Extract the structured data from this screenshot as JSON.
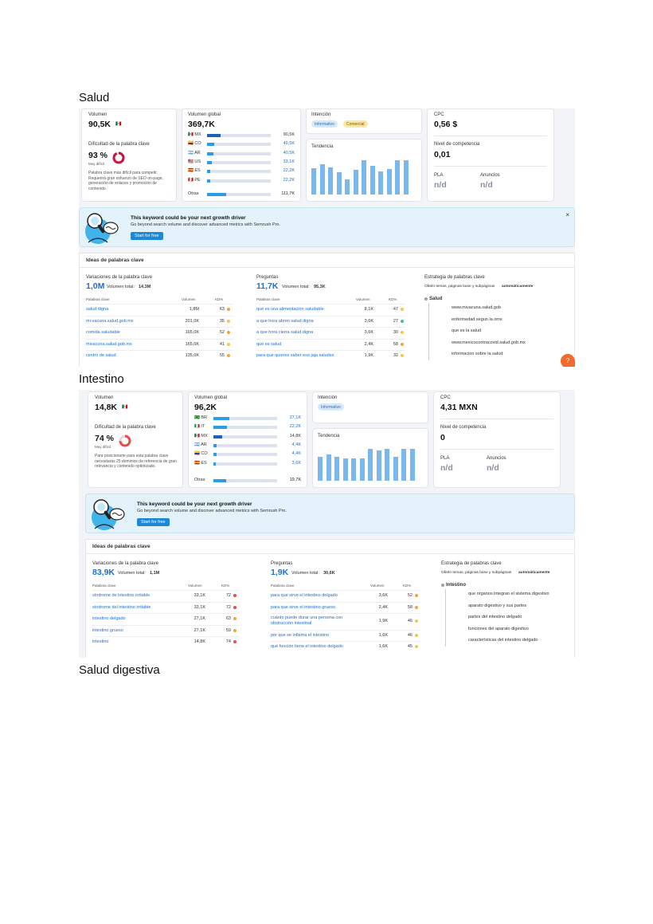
{
  "sections": [
    {
      "heading": "Salud",
      "volume": {
        "label": "Volumen",
        "value": "90,5K",
        "flag": "🇲🇽"
      },
      "difficulty": {
        "label": "Dificultad de la palabra clave",
        "percent": "93 %",
        "level": "Muy difícil",
        "fraction": 0.93,
        "color": "#c8143c",
        "desc": "Palabra clave más difícil para competir. Requerirá gran esfuerzo de SEO on-page, generación de enlaces y promoción de contenido."
      },
      "global": {
        "label": "Volumen global",
        "value": "369,7K",
        "countries": [
          {
            "flag": "🇲🇽",
            "code": "MX",
            "value": "90,5K",
            "fraction": 0.24,
            "dark": true
          },
          {
            "flag": "🇨🇴",
            "code": "CO",
            "value": "49,5K",
            "fraction": 0.13,
            "dark": false
          },
          {
            "flag": "🇦🇷",
            "code": "AR",
            "value": "40,5K",
            "fraction": 0.11,
            "dark": false
          },
          {
            "flag": "🇺🇸",
            "code": "US",
            "value": "33,1K",
            "fraction": 0.09,
            "dark": false
          },
          {
            "flag": "🇪🇸",
            "code": "ES",
            "value": "22,2K",
            "fraction": 0.06,
            "dark": false
          },
          {
            "flag": "🇵🇪",
            "code": "PE",
            "value": "22,2K",
            "fraction": 0.06,
            "dark": false
          }
        ],
        "others_label": "Otras",
        "others_value": "111,7K",
        "others_fraction": 0.3
      },
      "intent": {
        "label": "Intención",
        "tags": [
          "Informativo",
          "Comercial"
        ]
      },
      "trend": {
        "label": "Tendencia",
        "values": [
          0.62,
          0.72,
          0.65,
          0.52,
          0.35,
          0.58,
          0.82,
          0.68,
          0.55,
          0.6,
          0.82,
          0.82
        ]
      },
      "cpc": {
        "label": "CPC",
        "value": "0,56 $"
      },
      "competition": {
        "label": "Nivel de competencia",
        "value": "0,01"
      },
      "pla": {
        "label": "PLA",
        "value": "n/d"
      },
      "ads": {
        "label": "Anuncios",
        "value": "n/d"
      },
      "banner": {
        "title": "This keyword could be your next growth driver",
        "sub": "Go beyond search volume and discover advanced metrics with Semrush Pro.",
        "button": "Start for free",
        "close": "×"
      },
      "ideas": {
        "title": "Ideas de palabras clave",
        "variations": {
          "label": "Variaciones de la palabra clave",
          "count": "1,0M",
          "total_label": "Volumen total:",
          "total": "14,3M",
          "col_kw": "Palabras clave",
          "col_vol": "Volumen",
          "col_kd": "KD%",
          "rows": [
            {
              "kw": "salud digna",
              "vol": "1,8M",
              "kd": "63",
              "c": "#f0a630"
            },
            {
              "kw": "mi-vacuna.salud.gob.mx",
              "vol": "201,0K",
              "kd": "35",
              "c": "#f5c84a"
            },
            {
              "kw": "comida saludable",
              "vol": "165,0K",
              "kd": "52",
              "c": "#f0a630"
            },
            {
              "kw": "mivacuna.salud.gob.mx",
              "vol": "165,0K",
              "kd": "41",
              "c": "#f5c84a"
            },
            {
              "kw": "centro de salud",
              "vol": "135,0K",
              "kd": "55",
              "c": "#f0a630"
            }
          ]
        },
        "questions": {
          "label": "Preguntas",
          "count": "11,7K",
          "total_label": "Volumen total:",
          "total": "95,3K",
          "col_kw": "Palabras clave",
          "col_vol": "Volumen",
          "col_kd": "KD%",
          "rows": [
            {
              "kw": "qué es una alimentación saludable",
              "vol": "8,1K",
              "kd": "47",
              "c": "#f5c84a"
            },
            {
              "kw": "a que hora abren salud digna",
              "vol": "3,6K",
              "kd": "27",
              "c": "#4cc08a"
            },
            {
              "kw": "a que hora cierra salud digna",
              "vol": "3,6K",
              "kd": "30",
              "c": "#f5c84a"
            },
            {
              "kw": "qué es salud",
              "vol": "2,4K",
              "kd": "58",
              "c": "#f0a630"
            },
            {
              "kw": "para que quieres saber eso jaja saludes",
              "vol": "1,9K",
              "kd": "32",
              "c": "#f5c84a"
            }
          ]
        },
        "strategy": {
          "label": "Estrategia de palabras clave",
          "desc": "Obtén temas, páginas base y subpáginas",
          "desc_bold": "automáticamente",
          "root": "Salud",
          "items": [
            "www.mivacuna.salud.gob",
            "enfermedad segun la oms",
            "que es la salud",
            "www.mexicocontracovid.salud.gob.mx",
            "informacion sobre la salud"
          ]
        }
      }
    },
    {
      "heading": "Intestino",
      "volume": {
        "label": "Volumen",
        "value": "14,8K",
        "flag": "🇲🇽"
      },
      "difficulty": {
        "label": "Dificultad de la palabra clave",
        "percent": "74 %",
        "level": "Muy difícil",
        "fraction": 0.74,
        "color": "#e94b4b",
        "desc": "Para posicionarte para esta palabra clave necesitarás 25 dominios de referencia de gran relevancia y contenido optimizado."
      },
      "global": {
        "label": "Volumen global",
        "value": "96,2K",
        "countries": [
          {
            "flag": "🇧🇷",
            "code": "BR",
            "value": "27,1K",
            "fraction": 0.28,
            "dark": false
          },
          {
            "flag": "🇮🇹",
            "code": "IT",
            "value": "22,2K",
            "fraction": 0.23,
            "dark": false
          },
          {
            "flag": "🇲🇽",
            "code": "MX",
            "value": "14,8K",
            "fraction": 0.15,
            "dark": true
          },
          {
            "flag": "🇦🇷",
            "code": "AR",
            "value": "4,4K",
            "fraction": 0.05,
            "dark": false
          },
          {
            "flag": "🇨🇴",
            "code": "CO",
            "value": "4,4K",
            "fraction": 0.05,
            "dark": false
          },
          {
            "flag": "🇪🇸",
            "code": "ES",
            "value": "3,6K",
            "fraction": 0.04,
            "dark": false
          }
        ],
        "others_label": "Otras",
        "others_value": "19,7K",
        "others_fraction": 0.2
      },
      "intent": {
        "label": "Intención",
        "tags": [
          "Informativo"
        ]
      },
      "trend": {
        "label": "Tendencia",
        "values": [
          0.62,
          0.68,
          0.62,
          0.58,
          0.58,
          0.58,
          0.82,
          0.78,
          0.82,
          0.62,
          0.82,
          0.82
        ]
      },
      "cpc": {
        "label": "CPC",
        "value": "4,31 MXN"
      },
      "competition": {
        "label": "Nivel de competencia",
        "value": "0"
      },
      "pla": {
        "label": "PLA",
        "value": "n/d"
      },
      "ads": {
        "label": "Anuncios",
        "value": "n/d"
      },
      "banner": {
        "title": "This keyword could be your next growth driver",
        "sub": "Go beyond search volume and discover advanced metrics with Semrush Pro.",
        "button": "Start for free",
        "close": ""
      },
      "ideas": {
        "title": "Ideas de palabras clave",
        "variations": {
          "label": "Variaciones de la palabra clave",
          "count": "83,9K",
          "total_label": "Volumen total:",
          "total": "1,1M",
          "col_kw": "Palabras clave",
          "col_vol": "Volumen",
          "col_kd": "KD%",
          "rows": [
            {
              "kw": "síndrome de intestino irritable",
              "vol": "33,1K",
              "kd": "72",
              "c": "#e94b4b"
            },
            {
              "kw": "síndrome del intestino irritable",
              "vol": "33,1K",
              "kd": "72",
              "c": "#e94b4b"
            },
            {
              "kw": "intestino delgado",
              "vol": "27,1K",
              "kd": "63",
              "c": "#f0a630"
            },
            {
              "kw": "intestino grueso",
              "vol": "27,1K",
              "kd": "59",
              "c": "#f0a630"
            },
            {
              "kw": "intestino",
              "vol": "14,8K",
              "kd": "74",
              "c": "#e94b4b"
            }
          ]
        },
        "questions": {
          "label": "Preguntas",
          "count": "1,9K",
          "total_label": "Volumen total:",
          "total": "30,6K",
          "col_kw": "Palabras clave",
          "col_vol": "Volumen",
          "col_kd": "KD%",
          "rows": [
            {
              "kw": "para que sirve el intestino delgado",
              "vol": "3,6K",
              "kd": "52",
              "c": "#f0a630"
            },
            {
              "kw": "para que sirve el intestino grueso",
              "vol": "2,4K",
              "kd": "58",
              "c": "#f0a630"
            },
            {
              "kw": "cuánto puede durar una persona con obstrucción intestinal",
              "vol": "1,9K",
              "kd": "46",
              "c": "#f5c84a"
            },
            {
              "kw": "por que se inflama el intestino",
              "vol": "1,6K",
              "kd": "46",
              "c": "#f5c84a"
            },
            {
              "kw": "qué función tiene el intestino delgado",
              "vol": "1,6K",
              "kd": "45",
              "c": "#f5c84a"
            }
          ]
        },
        "strategy": {
          "label": "Estrategia de palabras clave",
          "desc": "Obtén temas, páginas base y subpáginas",
          "desc_bold": "automáticamente",
          "root": "Intestino",
          "items": [
            "que organos integran el sistema digestivo",
            "aparato digestivo y sus partes",
            "partes del intestino delgado",
            "funciones del aparato digestivo",
            "características del intestino delgado"
          ]
        }
      }
    }
  ],
  "third_heading": "Salud digestiva",
  "colors": {
    "accent": "#1a6fd1",
    "bar": "#2c9be8",
    "trend": "#79b7ec",
    "help": "#f26b2c"
  },
  "help_icon": "question-icon"
}
